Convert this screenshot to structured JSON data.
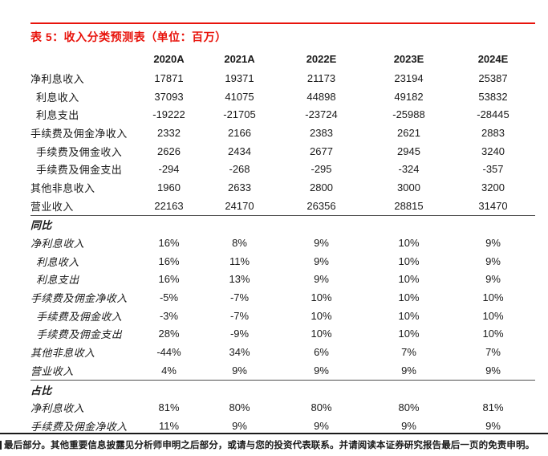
{
  "title": "表 5：收入分类预测表（单位：百万）",
  "accent_color": "#e8130b",
  "table": {
    "columns": [
      "2020A",
      "2021A",
      "2022E",
      "2023E",
      "2024E"
    ],
    "sections": [
      {
        "header": "",
        "rows": [
          {
            "label": "净利息收入",
            "indent": false,
            "values": [
              "17871",
              "19371",
              "21173",
              "23194",
              "25387"
            ]
          },
          {
            "label": "利息收入",
            "indent": true,
            "values": [
              "37093",
              "41075",
              "44898",
              "49182",
              "53832"
            ]
          },
          {
            "label": "利息支出",
            "indent": true,
            "values": [
              "-19222",
              "-21705",
              "-23724",
              "-25988",
              "-28445"
            ]
          },
          {
            "label": "手续费及佣金净收入",
            "indent": false,
            "values": [
              "2332",
              "2166",
              "2383",
              "2621",
              "2883"
            ]
          },
          {
            "label": "手续费及佣金收入",
            "indent": true,
            "values": [
              "2626",
              "2434",
              "2677",
              "2945",
              "3240"
            ]
          },
          {
            "label": "手续费及佣金支出",
            "indent": true,
            "values": [
              "-294",
              "-268",
              "-295",
              "-324",
              "-357"
            ]
          },
          {
            "label": "其他非息收入",
            "indent": false,
            "values": [
              "1960",
              "2633",
              "2800",
              "3000",
              "3200"
            ]
          },
          {
            "label": "营业收入",
            "indent": false,
            "values": [
              "22163",
              "24170",
              "26356",
              "28815",
              "31470"
            ]
          }
        ]
      },
      {
        "header": "同比",
        "rows": [
          {
            "label": "净利息收入",
            "indent": false,
            "values": [
              "16%",
              "8%",
              "9%",
              "10%",
              "9%"
            ]
          },
          {
            "label": "利息收入",
            "indent": true,
            "values": [
              "16%",
              "11%",
              "9%",
              "10%",
              "9%"
            ]
          },
          {
            "label": "利息支出",
            "indent": true,
            "values": [
              "16%",
              "13%",
              "9%",
              "10%",
              "9%"
            ]
          },
          {
            "label": "手续费及佣金净收入",
            "indent": false,
            "values": [
              "-5%",
              "-7%",
              "10%",
              "10%",
              "10%"
            ]
          },
          {
            "label": "手续费及佣金收入",
            "indent": true,
            "values": [
              "-3%",
              "-7%",
              "10%",
              "10%",
              "10%"
            ]
          },
          {
            "label": "手续费及佣金支出",
            "indent": true,
            "values": [
              "28%",
              "-9%",
              "10%",
              "10%",
              "10%"
            ]
          },
          {
            "label": "其他非息收入",
            "indent": false,
            "values": [
              "-44%",
              "34%",
              "6%",
              "7%",
              "7%"
            ]
          },
          {
            "label": "营业收入",
            "indent": false,
            "values": [
              "4%",
              "9%",
              "9%",
              "9%",
              "9%"
            ]
          }
        ]
      },
      {
        "header": "占比",
        "rows": [
          {
            "label": "净利息收入",
            "indent": false,
            "values": [
              "81%",
              "80%",
              "80%",
              "80%",
              "81%"
            ]
          },
          {
            "label": "手续费及佣金净收入",
            "indent": false,
            "values": [
              "11%",
              "9%",
              "9%",
              "9%",
              "9%"
            ]
          }
        ]
      }
    ]
  },
  "footer": {
    "text": "最后部分。其他重要信息披露见分析师申明之后部分，或请与您的投资代表联系。并请阅读本证券研究报告最后一页的免责申明。"
  }
}
